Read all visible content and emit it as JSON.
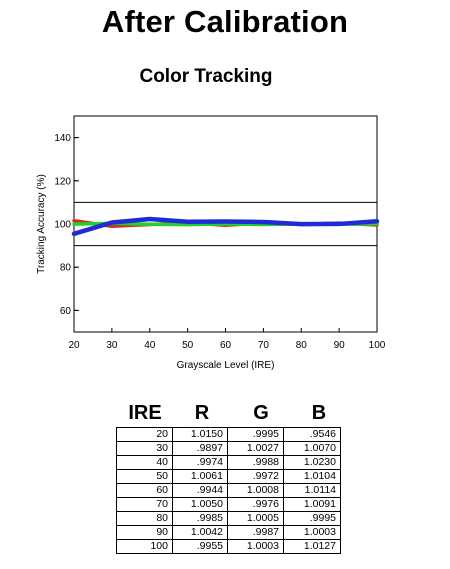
{
  "page": {
    "title": "After Calibration"
  },
  "chart_data": {
    "type": "line",
    "title": "Color Tracking",
    "xlabel": "Grayscale Level (IRE)",
    "ylabel": "Tracking Accuracy (%)",
    "x": [
      20,
      30,
      40,
      50,
      60,
      70,
      80,
      90,
      100
    ],
    "xlim": [
      20,
      100
    ],
    "ylim": [
      50,
      150
    ],
    "xticks": [
      20,
      30,
      40,
      50,
      60,
      70,
      80,
      90,
      100
    ],
    "yticks": [
      60,
      80,
      100,
      120,
      140
    ],
    "reference_lines": [
      90,
      110
    ],
    "grid": false,
    "series": [
      {
        "color": "#d42a1e",
        "values": [
          101.5,
          98.97,
          99.74,
          100.61,
          99.44,
          100.5,
          99.85,
          100.42,
          99.55
        ]
      },
      {
        "color": "#22d12a",
        "values": [
          99.95,
          100.27,
          99.88,
          99.72,
          100.08,
          99.76,
          100.05,
          99.87,
          100.03
        ]
      },
      {
        "color": "#1f2bd6",
        "values": [
          95.46,
          100.7,
          102.3,
          101.04,
          101.14,
          100.91,
          99.95,
          100.03,
          101.27
        ]
      }
    ]
  },
  "table": {
    "headers": [
      "IRE",
      "R",
      "G",
      "B"
    ],
    "rows": [
      [
        "20",
        "1.0150",
        ".9995",
        ".9546"
      ],
      [
        "30",
        ".9897",
        "1.0027",
        "1.0070"
      ],
      [
        "40",
        ".9974",
        ".9988",
        "1.0230"
      ],
      [
        "50",
        "1.0061",
        ".9972",
        "1.0104"
      ],
      [
        "60",
        ".9944",
        "1.0008",
        "1.0114"
      ],
      [
        "70",
        "1.0050",
        ".9976",
        "1.0091"
      ],
      [
        "80",
        ".9985",
        "1.0005",
        ".9995"
      ],
      [
        "90",
        "1.0042",
        ".9987",
        "1.0003"
      ],
      [
        "100",
        ".9955",
        "1.0003",
        "1.0127"
      ]
    ]
  }
}
